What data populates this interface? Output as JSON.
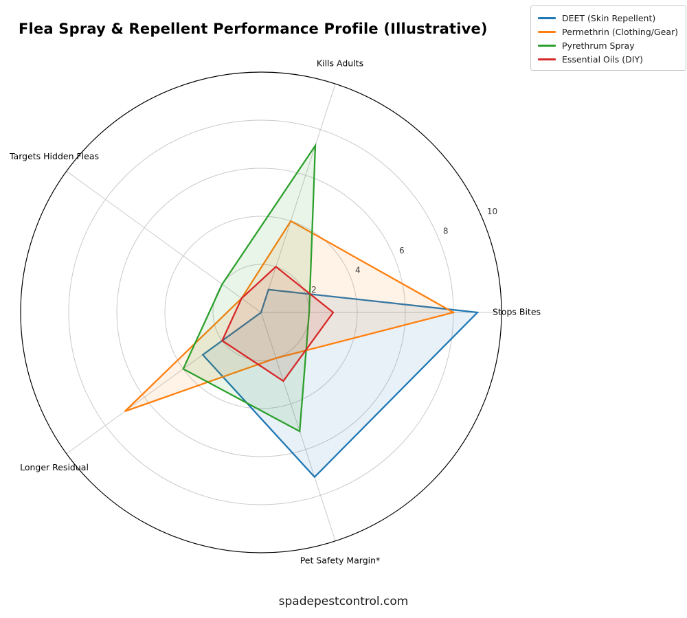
{
  "title": "Flea Spray & Repellent Performance Profile (Illustrative)",
  "footer": "spadepestcontrol.com",
  "chart_data": {
    "type": "radar",
    "title": "Flea Spray & Repellent Performance Profile (Illustrative)",
    "categories": [
      "Stops Bites",
      "Kills Adults",
      "Targets Hidden Fleas",
      "Longer Residual",
      "Pet Safety Margin*"
    ],
    "series": [
      {
        "name": "DEET (Skin Repellent)",
        "color": "#1f77b4",
        "values": [
          9,
          1,
          0,
          3,
          7.2
        ]
      },
      {
        "name": "Permethrin (Clothing/Gear)",
        "color": "#ff7f0e",
        "values": [
          8,
          4,
          1,
          7,
          2
        ]
      },
      {
        "name": "Pyrethrum Spray",
        "color": "#2ca02c",
        "values": [
          2,
          7.3,
          2,
          4,
          5.2
        ]
      },
      {
        "name": "Essential Oils (DIY)",
        "color": "#d62728",
        "values": [
          3,
          2,
          1,
          2,
          3
        ]
      }
    ],
    "r_ticks": [
      2,
      4,
      6,
      8,
      10
    ],
    "r_max": 10,
    "start_angle_deg": 0,
    "direction": "counterclockwise",
    "grid": true,
    "legend_position": "top-right",
    "fill_opacity": 0.1,
    "grid_color": "#c9c9c9",
    "outline_color": "#000000",
    "watermark": "spadepestcontrol.com"
  }
}
